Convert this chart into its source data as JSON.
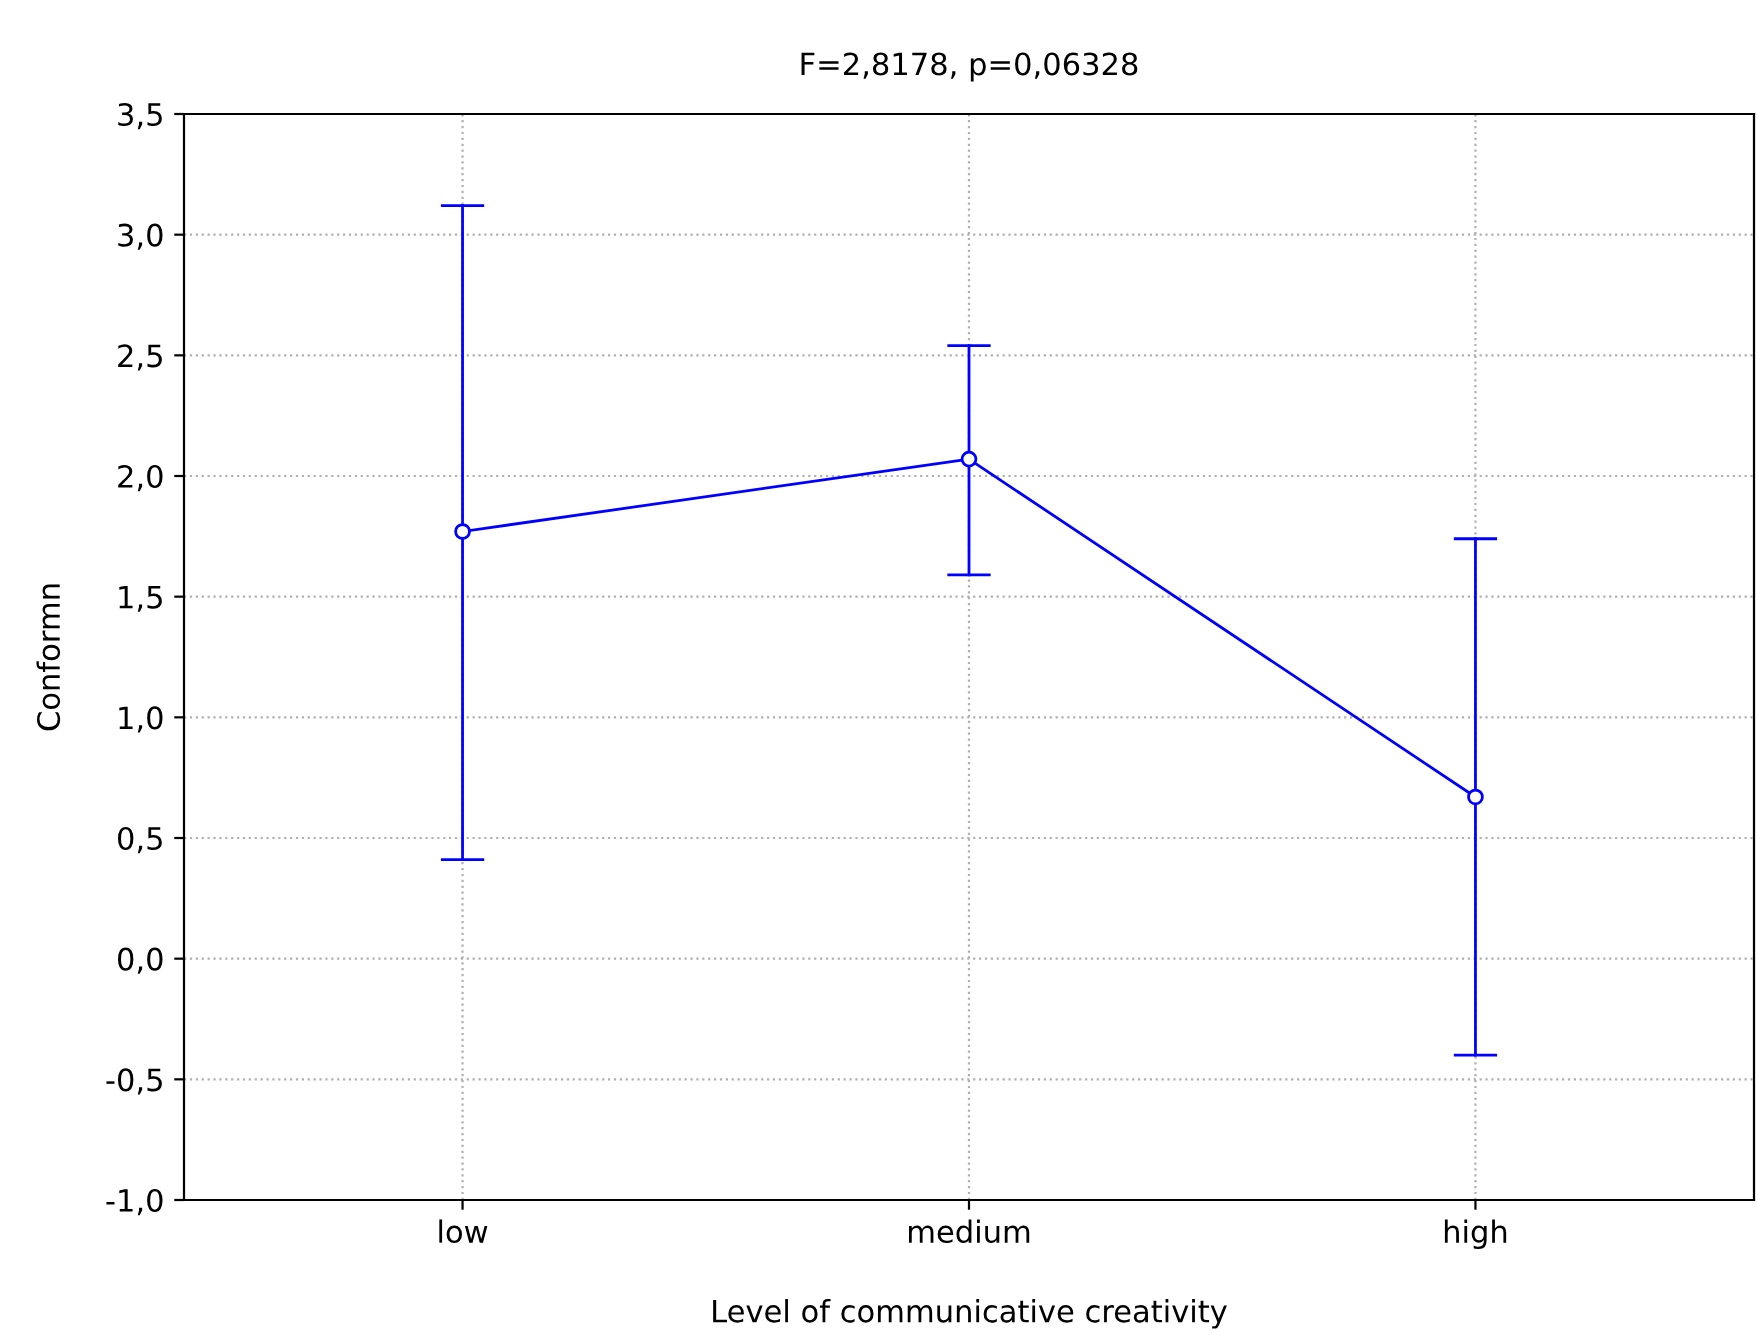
{
  "chart_data": {
    "type": "line",
    "title": "F=2,8178, p=0,06328",
    "xlabel": "Level of communicative creativity",
    "ylabel": "Conformn",
    "categories": [
      "low",
      "medium",
      "high"
    ],
    "values": [
      1.77,
      2.07,
      0.67
    ],
    "errors": [
      [
        0.41,
        3.12
      ],
      [
        1.59,
        2.54
      ],
      [
        -0.4,
        1.74
      ]
    ],
    "color": "#0000ff",
    "marker": "circle",
    "line_style": "solid",
    "grid": true,
    "ylim": [
      -1.0,
      3.5
    ],
    "yticks": [
      {
        "value": -1.0,
        "label": "-1,0"
      },
      {
        "value": -0.5,
        "label": "-0,5"
      },
      {
        "value": 0.0,
        "label": "0,0"
      },
      {
        "value": 0.5,
        "label": "0,5"
      },
      {
        "value": 1.0,
        "label": "1,0"
      },
      {
        "value": 1.5,
        "label": "1,5"
      },
      {
        "value": 2.0,
        "label": "2,0"
      },
      {
        "value": 2.5,
        "label": "2,5"
      },
      {
        "value": 3.0,
        "label": "3,0"
      },
      {
        "value": 3.5,
        "label": "3,5"
      }
    ]
  }
}
